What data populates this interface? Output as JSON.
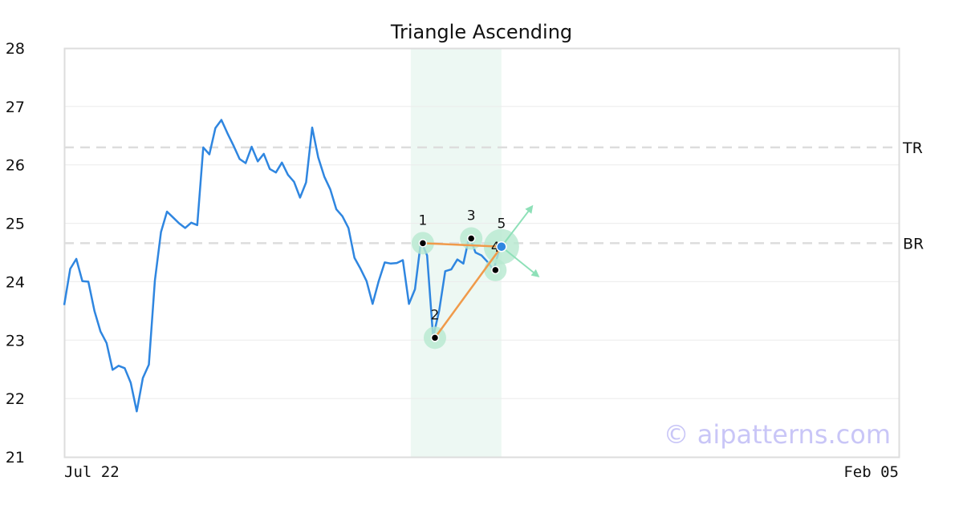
{
  "chart_data": {
    "type": "line",
    "title": "Triangle Ascending",
    "xlabel": "",
    "ylabel": "",
    "ylim": [
      21,
      28
    ],
    "y_ticks": [
      21,
      22,
      23,
      24,
      25,
      26,
      27,
      28
    ],
    "x_ticks": [
      {
        "index": 0,
        "label": "Jul 22"
      },
      {
        "index": 138,
        "label": "Feb 05"
      }
    ],
    "grid": "horizontal",
    "colors": {
      "price_line": "#2f86e0",
      "pattern_line": "#f09a4a",
      "highlight_band": "#e8f6f0",
      "marker_halo": "#b6e8cf",
      "arrow": "#8ee0b8",
      "reference_line": "#dddddd",
      "watermark": "#c9c6f7"
    },
    "series": [
      {
        "values": [
          23.6,
          24.22,
          24.39,
          24.01,
          24.0,
          23.5,
          23.15,
          22.95,
          22.49,
          22.56,
          22.52,
          22.27,
          21.78,
          22.35,
          22.58,
          24.02,
          24.85,
          25.2,
          25.1,
          25.0,
          24.92,
          25.01,
          24.97,
          26.3,
          26.18,
          26.63,
          26.77,
          26.54,
          26.33,
          26.1,
          26.03,
          26.31,
          26.06,
          26.19,
          25.93,
          25.87,
          26.04,
          25.83,
          25.71,
          25.44,
          25.7,
          26.64,
          26.13,
          25.8,
          25.58,
          25.24,
          25.12,
          24.92,
          24.41,
          24.22,
          24.01,
          23.62,
          24.01,
          24.33,
          24.31,
          24.32,
          24.37,
          23.62,
          23.87,
          24.7,
          24.45,
          23.05,
          23.5,
          24.18,
          24.21,
          24.38,
          24.31,
          24.78,
          24.5,
          24.45,
          24.34,
          24.2,
          24.57,
          24.6
        ]
      }
    ],
    "highlight_range": [
      57.3,
      72.3
    ],
    "reference_lines": [
      {
        "label": "TR",
        "value": 26.3
      },
      {
        "label": "BR",
        "value": 24.66
      }
    ],
    "pattern_points": [
      {
        "label": "1",
        "x": 59.3,
        "y": 24.66
      },
      {
        "label": "2",
        "x": 61.3,
        "y": 23.04
      },
      {
        "label": "3",
        "x": 67.3,
        "y": 24.74
      },
      {
        "label": "4",
        "x": 71.3,
        "y": 24.2
      },
      {
        "label": "5",
        "x": 72.3,
        "y": 24.6
      }
    ],
    "pattern_lines": [
      [
        0,
        4
      ],
      [
        1,
        4
      ]
    ],
    "breakout_arrows": [
      {
        "from": 4,
        "to_x": 77.3,
        "to_y": 25.28
      },
      {
        "from": 4,
        "to_x": 78.3,
        "to_y": 24.1
      }
    ]
  },
  "watermark": "© aipatterns.com"
}
